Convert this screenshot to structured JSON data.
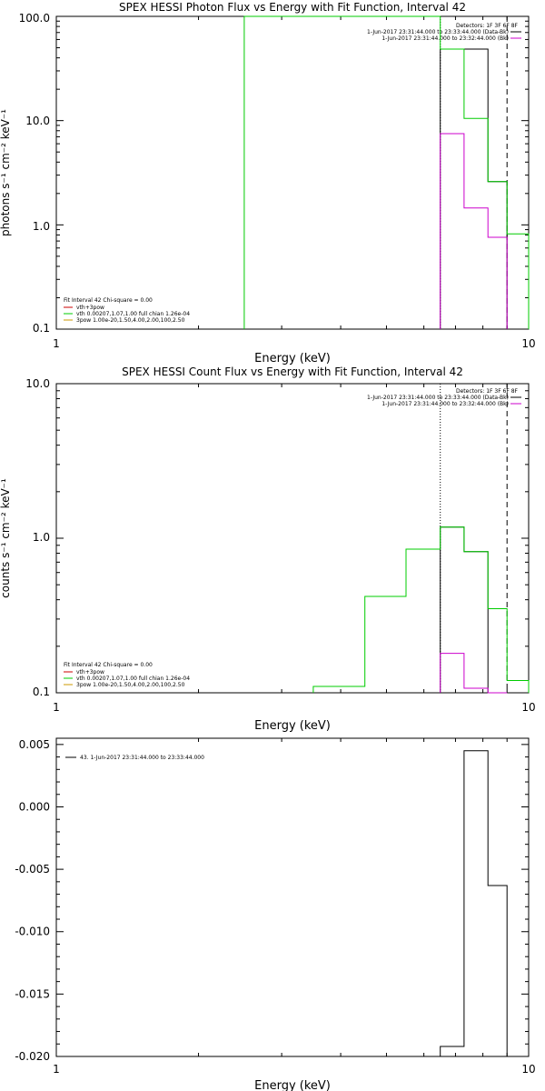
{
  "chart_data": [
    {
      "type": "line",
      "title": "SPEX HESSI Photon Flux vs Energy with Fit Function, Interval 42",
      "xlabel": "Energy (keV)",
      "ylabel": "photons s⁻¹ cm⁻² keV⁻¹",
      "xscale": "log",
      "yscale": "log",
      "xlim": [
        1,
        10
      ],
      "ylim": [
        0.1,
        100
      ],
      "x_ticks": [
        "1",
        "10"
      ],
      "y_ticks": [
        "0.1",
        "1.0",
        "10.0",
        "100.0"
      ],
      "vlines": [
        {
          "x": 6.5,
          "style": "dotted"
        },
        {
          "x": 9.0,
          "style": "dashed"
        }
      ],
      "legend_topright": [
        "Detectors: 1F 3F 6F 8F",
        "1-Jun-2017 23:31:44.000 to 23:33:44.000 (Data-Bk)",
        "1-Jun-2017 23:31:44.000 to 23:32:44.000 (Bk)"
      ],
      "legend_bottomleft": {
        "header": "Fit Interval 42   Chi-square = 0.00",
        "items": [
          {
            "label": "vth+3pow",
            "color": "#cc0000"
          },
          {
            "label": "vth 0.00207,1.07,1.00  full chian 1.26e-04",
            "color": "#00cc00"
          },
          {
            "label": "3pow 1.00e-20,1.50,4.00,2.00,100,2.50",
            "color": "#cc9900"
          }
        ]
      },
      "series": [
        {
          "color": "#000000",
          "edges": [
            6.5,
            7.3,
            8.2,
            9.0
          ],
          "values": [
            48.5,
            48.5,
            2.6
          ]
        },
        {
          "color": "#00cc00",
          "edges": [
            2.5,
            3.0,
            3.5,
            4.0,
            4.5,
            5.0,
            6.0,
            6.5,
            7.3,
            8.2,
            9.0,
            10.0
          ],
          "values": [
            100,
            100,
            100,
            100,
            100,
            100,
            100,
            48.5,
            10.5,
            2.6,
            0.82
          ]
        },
        {
          "color": "#cc00cc",
          "edges": [
            6.5,
            7.3,
            8.2,
            9.0
          ],
          "values": [
            7.5,
            1.45,
            0.76
          ]
        }
      ]
    },
    {
      "type": "line",
      "title": "SPEX HESSI Count Flux vs Energy with Fit Function, Interval 42",
      "xlabel": "Energy (keV)",
      "ylabel": "counts s⁻¹ cm⁻² keV⁻¹",
      "xscale": "log",
      "yscale": "log",
      "xlim": [
        1,
        10
      ],
      "ylim": [
        0.1,
        10
      ],
      "x_ticks": [
        "1",
        "10"
      ],
      "y_ticks": [
        "0.1",
        "1.0",
        "10.0"
      ],
      "vlines": [
        {
          "x": 6.5,
          "style": "dotted"
        },
        {
          "x": 9.0,
          "style": "dashed"
        }
      ],
      "legend_topright": [
        "Detectors: 1F 3F 6F 8F",
        "1-Jun-2017 23:31:44.000 to 23:33:44.000 (Data-Bk)",
        "1-Jun-2017 23:31:44.000 to 23:32:44.000 (Bk)"
      ],
      "legend_bottomleft": {
        "header": "Fit Interval 42   Chi-square = 0.00",
        "items": [
          {
            "label": "vth+3pow",
            "color": "#cc0000"
          },
          {
            "label": "vth 0.00207,1.07,1.00  full chian 1.26e-04",
            "color": "#00cc00"
          },
          {
            "label": "3pow 1.00e-20,1.50,4.00,2.00,100,2.50",
            "color": "#cc9900"
          }
        ]
      },
      "series": [
        {
          "color": "#000000",
          "edges": [
            6.5,
            7.3,
            8.2,
            9.0
          ],
          "values": [
            1.18,
            0.82,
            0.1
          ]
        },
        {
          "color": "#00cc00",
          "edges": [
            3.5,
            4.5,
            5.5,
            6.5,
            7.3,
            8.2,
            9.0,
            10.0
          ],
          "values": [
            0.11,
            0.42,
            0.85,
            1.18,
            0.82,
            0.35,
            0.12
          ]
        },
        {
          "color": "#cc00cc",
          "edges": [
            6.5,
            7.3,
            8.2,
            9.0
          ],
          "values": [
            0.18,
            0.107,
            0.1
          ]
        }
      ]
    },
    {
      "type": "line",
      "title": "",
      "xlabel": "Energy (keV)",
      "ylabel": "",
      "xscale": "log",
      "yscale": "linear",
      "xlim": [
        1,
        10
      ],
      "ylim": [
        -0.02,
        0.0055
      ],
      "x_ticks": [
        "1",
        "10"
      ],
      "y_ticks": [
        "-0.020",
        "-0.015",
        "-0.010",
        "-0.005",
        "0.000",
        "0.005"
      ],
      "y_tick_values": [
        -0.02,
        -0.015,
        -0.01,
        -0.005,
        0.0,
        0.005
      ],
      "legend": "43.  1-Jun-2017 23:31:44.000 to 23:33:44.000",
      "series": [
        {
          "color": "#000000",
          "edges": [
            6.5,
            7.3,
            8.2,
            9.0
          ],
          "values": [
            -0.0192,
            0.0045,
            -0.0063
          ]
        }
      ]
    }
  ]
}
